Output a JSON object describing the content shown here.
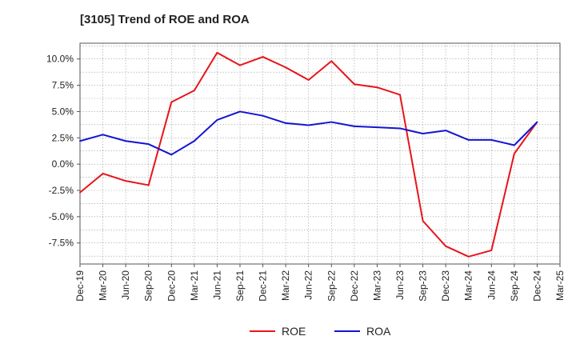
{
  "chart_data": {
    "type": "line",
    "title": "[3105]  Trend of ROE and ROA",
    "xlabel": "",
    "ylabel": "",
    "categories": [
      "Dec-19",
      "Mar-20",
      "Jun-20",
      "Sep-20",
      "Dec-20",
      "Mar-21",
      "Jun-21",
      "Sep-21",
      "Dec-21",
      "Mar-22",
      "Jun-22",
      "Sep-22",
      "Dec-22",
      "Mar-23",
      "Jun-23",
      "Sep-23",
      "Dec-23",
      "Mar-24",
      "Jun-24",
      "Sep-24",
      "Dec-24",
      "Mar-25"
    ],
    "ylim": [
      -9.5,
      11.5
    ],
    "yticks": [
      10.0,
      7.5,
      5.0,
      2.5,
      0.0,
      -2.5,
      -5.0,
      -7.5
    ],
    "ytick_labels": [
      "10.0%",
      "7.5%",
      "5.0%",
      "2.5%",
      "0.0%",
      "-2.5%",
      "-5.0%",
      "-7.5%"
    ],
    "grid": true,
    "legend_position": "bottom-center",
    "series": [
      {
        "name": "ROE",
        "color": "#e8141b",
        "values": [
          -2.7,
          -0.9,
          -1.6,
          -2.0,
          5.9,
          7.0,
          10.6,
          9.4,
          10.2,
          9.2,
          8.0,
          9.8,
          7.6,
          7.3,
          6.6,
          -5.4,
          -7.8,
          -8.8,
          -8.2,
          1.0,
          4.0,
          null
        ]
      },
      {
        "name": "ROA",
        "color": "#1414d2",
        "values": [
          2.2,
          2.8,
          2.2,
          1.9,
          0.9,
          2.2,
          4.2,
          5.0,
          4.6,
          3.9,
          3.7,
          4.0,
          3.6,
          3.5,
          3.4,
          2.9,
          3.2,
          2.3,
          2.3,
          1.8,
          4.0,
          null
        ]
      }
    ]
  }
}
